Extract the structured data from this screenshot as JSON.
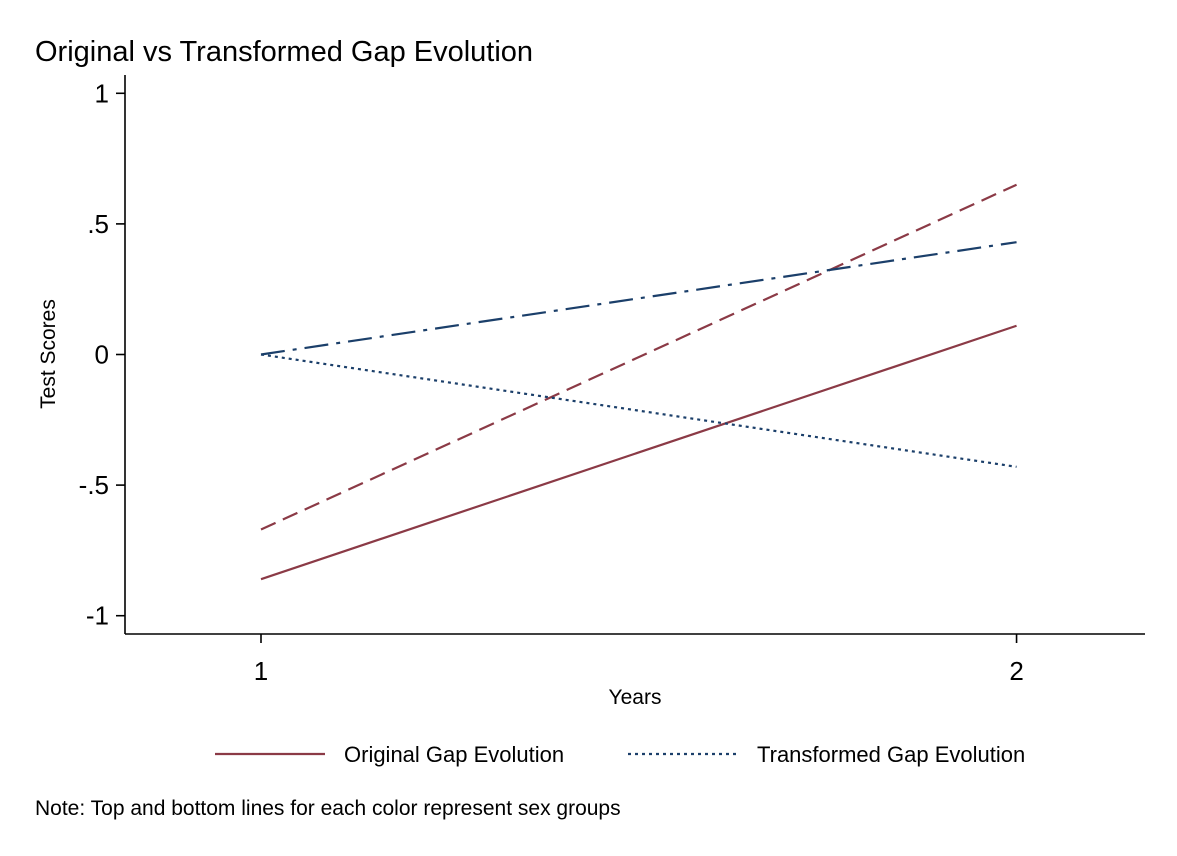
{
  "chart_data": {
    "type": "line",
    "title": "Original vs Transformed Gap Evolution",
    "xlabel": "Years",
    "ylabel": "Test Scores",
    "x": [
      1,
      2
    ],
    "xticks": [
      1,
      2
    ],
    "xtick_labels": [
      "1",
      "2"
    ],
    "xlim": [
      0.82,
      2.17
    ],
    "ylim": [
      -1.07,
      1.07
    ],
    "yticks": [
      1,
      0.5,
      0,
      -0.5,
      -1
    ],
    "ytick_labels": [
      "1",
      ".5",
      "0",
      "-.5",
      "-1"
    ],
    "grid": false,
    "series": [
      {
        "group": "original",
        "style": "solid",
        "color": "#8B3A46",
        "values": [
          -0.86,
          0.11
        ]
      },
      {
        "group": "original",
        "style": "dash",
        "color": "#8B3A46",
        "values": [
          -0.67,
          0.65
        ]
      },
      {
        "group": "transformed",
        "style": "dot",
        "color": "#1B3F6A",
        "values": [
          0.0,
          -0.43
        ]
      },
      {
        "group": "transformed",
        "style": "dashdot",
        "color": "#1B3F6A",
        "values": [
          0.0,
          0.43
        ]
      }
    ],
    "legend": {
      "placement": "bottom",
      "entries": [
        {
          "label": "Original Gap Evolution",
          "style": "solid",
          "color": "#8B3A46"
        },
        {
          "label": "Transformed Gap Evolution",
          "style": "dot",
          "color": "#1B3F6A"
        }
      ]
    },
    "note": "Note: Top and bottom lines for each color represent sex groups"
  }
}
